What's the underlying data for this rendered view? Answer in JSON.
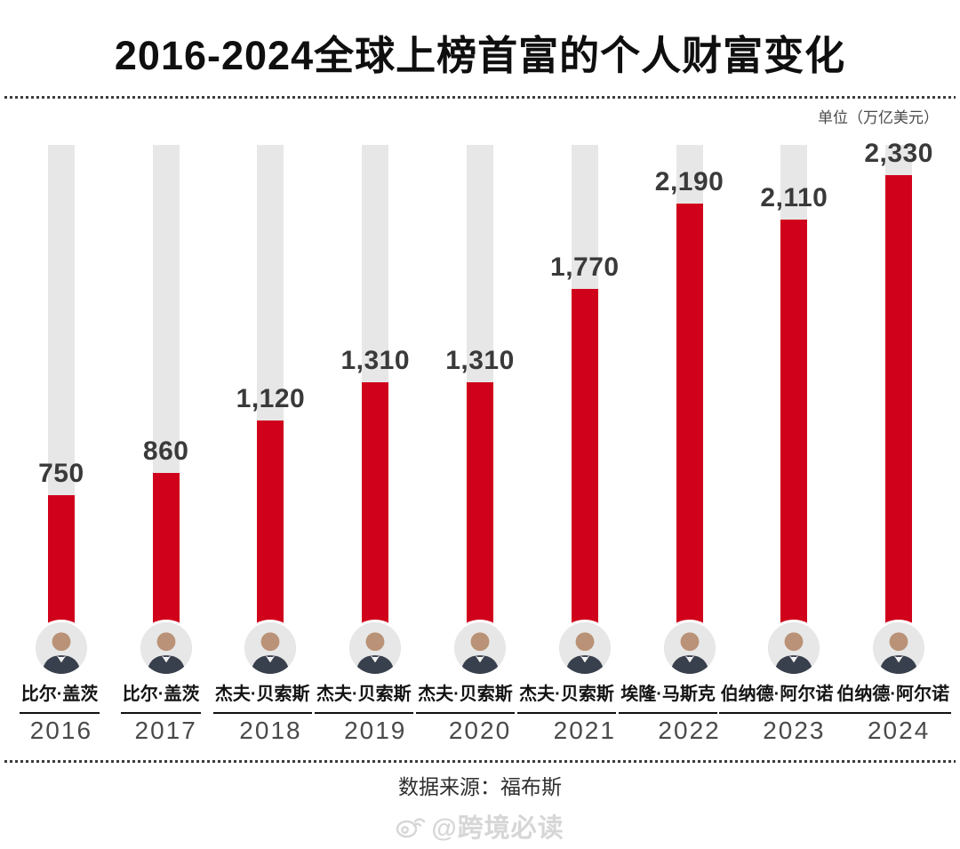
{
  "header": {
    "title": "2016-2024全球上榜首富的个人财富变化",
    "unit_note": "单位（万亿美元）"
  },
  "chart_data": {
    "type": "bar",
    "title": "2016-2024全球上榜首富的个人财富变化",
    "unit_label": "单位（万亿美元）",
    "categories": [
      "2016",
      "2017",
      "2018",
      "2019",
      "2020",
      "2021",
      "2022",
      "2023",
      "2024"
    ],
    "values": [
      750,
      860,
      1120,
      1310,
      1310,
      1770,
      2190,
      2110,
      2330
    ],
    "value_labels": [
      "750",
      "860",
      "1,120",
      "1,310",
      "1,310",
      "1,770",
      "2,190",
      "2,110",
      "2,330"
    ],
    "people": [
      "比尔·盖茨",
      "比尔·盖茨",
      "杰夫·贝索斯",
      "杰夫·贝索斯",
      "杰夫·贝索斯",
      "杰夫·贝索斯",
      "埃隆·马斯克",
      "伯纳德·阿尔诺",
      "伯纳德·阿尔诺"
    ],
    "ylim": [
      0,
      2480
    ],
    "grid": false,
    "legend": false,
    "bar_color": "#d0021b",
    "track_color": "#e7e7e7",
    "value_label_color": "#3a3a3a"
  },
  "footer": {
    "source": "数据来源：福布斯",
    "watermark": "@跨境必读",
    "watermark_icon": "weibo-icon"
  }
}
